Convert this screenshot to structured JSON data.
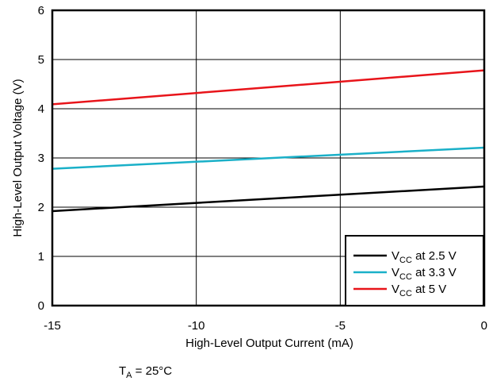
{
  "chart_data": {
    "type": "line",
    "xlabel": "High-Level Output Current (mA)",
    "ylabel": "High-Level Output Voltage (V)",
    "xlim": [
      -15,
      0
    ],
    "ylim": [
      0,
      6
    ],
    "x_ticks": [
      "-15",
      "-10",
      "-5",
      "0"
    ],
    "y_ticks": [
      "0",
      "1",
      "2",
      "3",
      "4",
      "5",
      "6"
    ],
    "grid": true,
    "legend_position": "bottom-right",
    "series": [
      {
        "name_main": "V",
        "name_sub": "CC",
        "name_rest": " at 2.5 V",
        "color": "#000000",
        "x": [
          -15,
          0
        ],
        "y": [
          1.92,
          2.42
        ]
      },
      {
        "name_main": "V",
        "name_sub": "CC",
        "name_rest": " at 3.3 V",
        "color": "#1ab0c8",
        "x": [
          -15,
          0
        ],
        "y": [
          2.78,
          3.21
        ]
      },
      {
        "name_main": "V",
        "name_sub": "CC",
        "name_rest": " at 5 V",
        "color": "#e8141a",
        "x": [
          -15,
          0
        ],
        "y": [
          4.09,
          4.78
        ]
      }
    ],
    "annotation": {
      "main": "T",
      "sub": "A",
      "rest": " = 25°C"
    }
  }
}
